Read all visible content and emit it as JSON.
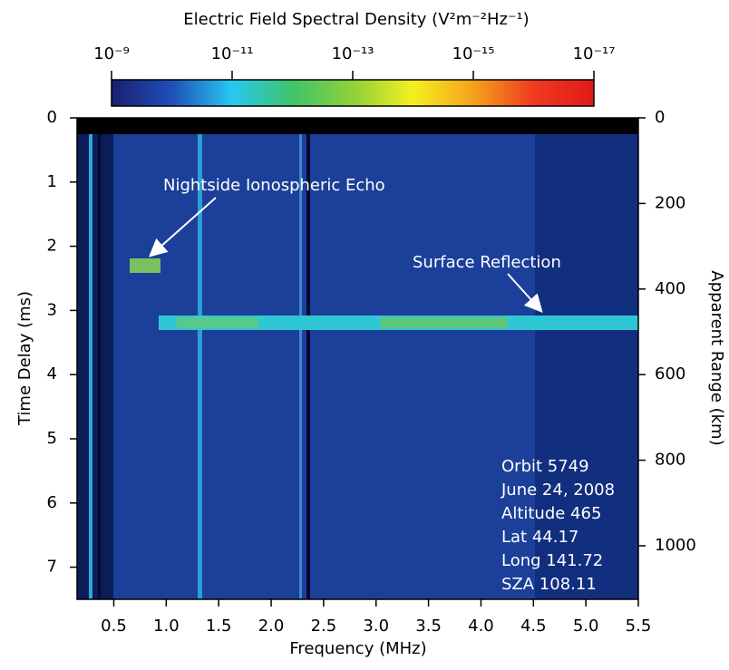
{
  "chart_data": {
    "type": "spectrogram",
    "colorbar_title": "Electric Field Spectral Density (V²m⁻²Hz⁻¹)",
    "clim": [
      1e-09,
      1e-17
    ],
    "cticks": [
      {
        "value": 1e-09,
        "label": "10⁻⁹"
      },
      {
        "value": 1e-11,
        "label": "10⁻¹¹"
      },
      {
        "value": 1e-13,
        "label": "10⁻¹³"
      },
      {
        "value": 1e-15,
        "label": "10⁻¹⁵"
      },
      {
        "value": 1e-17,
        "label": "10⁻¹⁷"
      }
    ],
    "colors": [
      "#1a1f6e",
      "#1f4fb8",
      "#27c8f0",
      "#3fc46a",
      "#8fd03a",
      "#f4f020",
      "#f5a21a",
      "#ef3a20",
      "#e01a1a"
    ],
    "x_label": "Frequency (MHz)",
    "y_label": "Time Delay (ms)",
    "y2_label": "Apparent Range (km)",
    "xlim": [
      0.15,
      5.5
    ],
    "xticks": [
      0.5,
      {
        "value": 1,
        "label": "1.0"
      },
      1.5,
      {
        "value": 2,
        "label": "2.0"
      },
      2.5,
      {
        "value": 3,
        "label": "3.0"
      },
      3.5,
      {
        "value": 4,
        "label": "4.0"
      },
      4.5,
      {
        "value": 5,
        "label": "5.0"
      },
      5.5
    ],
    "ylim": [
      0,
      7.5
    ],
    "yticks": [
      0,
      1,
      2,
      3,
      4,
      5,
      6,
      7
    ],
    "y2lim": [
      0,
      1125
    ],
    "y2ticks": [
      0,
      200,
      400,
      600,
      800,
      1000
    ],
    "annotations": [
      "Nightside Ionospheric Echo",
      "Surface Reflection"
    ],
    "info": [
      "Orbit 5749",
      "June 24, 2008",
      "Altitude 465",
      "Lat 44.17",
      "Long 141.72",
      "SZA 108.11"
    ]
  }
}
